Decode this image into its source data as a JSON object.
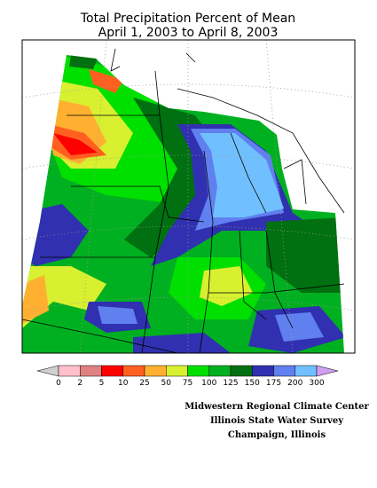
{
  "header": {
    "title": "Total Precipitation Percent of Mean",
    "subtitle": "April 1, 2003 to April 8, 2003"
  },
  "legend": {
    "ticks": [
      0,
      2,
      5,
      10,
      25,
      50,
      75,
      100,
      125,
      150,
      175,
      200,
      300
    ],
    "colors": [
      "#ffc0cb",
      "#e08080",
      "#ff0000",
      "#ff6020",
      "#ffb030",
      "#d8f030",
      "#00e000",
      "#00b020",
      "#007010",
      "#3030b0",
      "#6080f0",
      "#70c0ff"
    ],
    "under_color": "#d0d0d0",
    "over_color": "#d0a0f0"
  },
  "credits": [
    "Midwestern Regional Climate Center",
    "Illinois State Water Survey",
    "Champaign, Illinois"
  ]
}
